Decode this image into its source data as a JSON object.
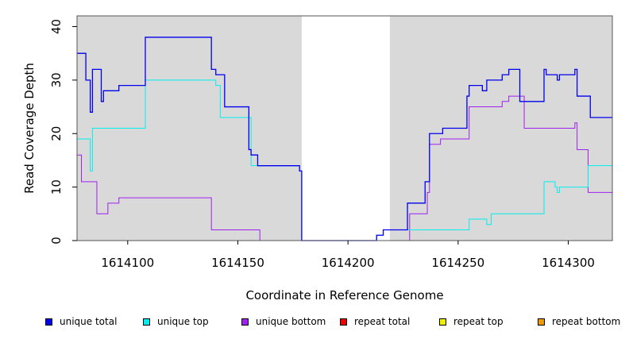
{
  "chart_data": {
    "type": "line",
    "title": "",
    "xlabel": "Coordinate in Reference Genome",
    "ylabel": "Read Coverage Depth",
    "xlim": [
      1614077,
      1614320
    ],
    "ylim": [
      0,
      42
    ],
    "xticks": [
      1614100,
      1614150,
      1614200,
      1614250,
      1614300
    ],
    "yticks": [
      0,
      10,
      20,
      30,
      40
    ],
    "grid": false,
    "legend_position": "bottom",
    "background_color": "#d9d9d9",
    "unshaded_regions": [
      [
        1614179,
        1614219
      ]
    ],
    "series": [
      {
        "name": "unique total",
        "color": "#0000ee",
        "x": [
          1614077,
          1614079,
          1614081,
          1614083,
          1614084,
          1614085,
          1614088,
          1614089,
          1614094,
          1614096,
          1614103,
          1614107,
          1614108,
          1614110,
          1614118,
          1614128,
          1614136,
          1614138,
          1614140,
          1614142,
          1614144,
          1614150,
          1614152,
          1614155,
          1614156,
          1614159,
          1614163,
          1614170,
          1614175,
          1614178,
          1614179,
          1614182,
          1614188,
          1614195,
          1614202,
          1614208,
          1614213,
          1614216,
          1614218,
          1614219,
          1614223,
          1614227,
          1614228,
          1614231,
          1614235,
          1614237,
          1614238,
          1614240,
          1614241,
          1614242,
          1614243,
          1614245,
          1614247,
          1614250,
          1614252,
          1614254,
          1614255,
          1614256,
          1614261,
          1614263,
          1614264,
          1614267,
          1614270,
          1614273,
          1614274,
          1614275,
          1614278,
          1614280,
          1614282,
          1614286,
          1614289,
          1614290,
          1614291,
          1614294,
          1614295,
          1614296,
          1614301,
          1614303,
          1614304,
          1614306,
          1614309,
          1614310,
          1614312,
          1614315,
          1614320
        ],
        "y": [
          35,
          35,
          30,
          24,
          32,
          32,
          26,
          28,
          28,
          29,
          29,
          29,
          38,
          38,
          38,
          38,
          38,
          32,
          31,
          31,
          25,
          25,
          25,
          17,
          16,
          14,
          14,
          14,
          14,
          13,
          0,
          0,
          0,
          0,
          0,
          0,
          1,
          2,
          2,
          2,
          2,
          7,
          7,
          7,
          11,
          20,
          20,
          20,
          20,
          20,
          21,
          21,
          21,
          21,
          21,
          27,
          29,
          29,
          28,
          30,
          30,
          30,
          31,
          32,
          32,
          32,
          26,
          26,
          26,
          26,
          32,
          31,
          31,
          31,
          30,
          31,
          31,
          32,
          27,
          27,
          27,
          23,
          23,
          23,
          23
        ],
        "render": "step"
      },
      {
        "name": "unique top",
        "color": "#00eeee",
        "x": [
          1614077,
          1614081,
          1614083,
          1614084,
          1614089,
          1614096,
          1614103,
          1614107,
          1614108,
          1614118,
          1614128,
          1614137,
          1614140,
          1614142,
          1614150,
          1614152,
          1614155,
          1614156,
          1614163,
          1614170,
          1614178,
          1614179,
          1614213,
          1614216,
          1614219,
          1614227,
          1614231,
          1614237,
          1614241,
          1614250,
          1614255,
          1614260,
          1614263,
          1614265,
          1614270,
          1614280,
          1614288,
          1614289,
          1614294,
          1614295,
          1614296,
          1614303,
          1614309,
          1614320
        ],
        "y": [
          19,
          19,
          13,
          21,
          21,
          21,
          21,
          21,
          30,
          30,
          30,
          30,
          29,
          23,
          23,
          23,
          23,
          14,
          14,
          14,
          13,
          0,
          1,
          2,
          2,
          2,
          2,
          2,
          2,
          2,
          4,
          4,
          3,
          5,
          5,
          5,
          5,
          11,
          10,
          9,
          10,
          10,
          14,
          14
        ],
        "render": "step"
      },
      {
        "name": "unique bottom",
        "color": "#a020f0",
        "x": [
          1614077,
          1614079,
          1614085,
          1614086,
          1614091,
          1614096,
          1614103,
          1614108,
          1614118,
          1614128,
          1614138,
          1614150,
          1614155,
          1614158,
          1614160,
          1614179,
          1614219,
          1614223,
          1614228,
          1614236,
          1614237,
          1614238,
          1614242,
          1614250,
          1614255,
          1614260,
          1614265,
          1614270,
          1614273,
          1614275,
          1614280,
          1614285,
          1614290,
          1614300,
          1614302,
          1614303,
          1614304,
          1614309,
          1614315,
          1614320
        ],
        "y": [
          16,
          11,
          11,
          5,
          7,
          8,
          8,
          8,
          8,
          8,
          2,
          2,
          2,
          2,
          0,
          0,
          0,
          0,
          5,
          9,
          18,
          18,
          19,
          19,
          25,
          25,
          25,
          26,
          27,
          27,
          21,
          21,
          21,
          21,
          21,
          22,
          17,
          9,
          9,
          9
        ],
        "render": "step"
      },
      {
        "name": "repeat total",
        "color": "#ee0000",
        "x": [
          1614077,
          1614320
        ],
        "y": [
          0,
          0
        ],
        "render": "step"
      },
      {
        "name": "repeat top",
        "color": "#eeee00",
        "x": [
          1614077,
          1614320
        ],
        "y": [
          0,
          0
        ],
        "render": "step"
      },
      {
        "name": "repeat bottom",
        "color": "#ee9a00",
        "x": [
          1614077,
          1614320
        ],
        "y": [
          0,
          0
        ],
        "render": "step"
      }
    ]
  },
  "legend": {
    "items": [
      {
        "label": "unique total",
        "color": "#0000ee"
      },
      {
        "label": "unique top",
        "color": "#00eeee"
      },
      {
        "label": "unique bottom",
        "color": "#a020f0"
      },
      {
        "label": "repeat total",
        "color": "#ee0000"
      },
      {
        "label": "repeat top",
        "color": "#eeee00"
      },
      {
        "label": "repeat bottom",
        "color": "#ee9a00"
      }
    ]
  }
}
